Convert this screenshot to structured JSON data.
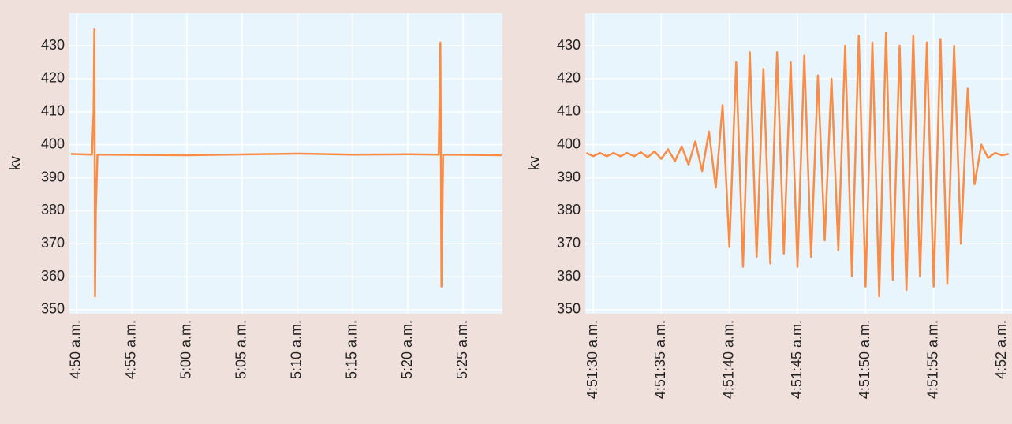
{
  "chart_data": [
    {
      "type": "line",
      "ylabel": "kv",
      "color": "#fa8c46",
      "grid": true,
      "x": [
        289.5,
        291.4,
        291.55,
        291.62,
        291.68,
        291.75,
        291.9,
        300,
        310,
        315,
        320,
        322.8,
        322.95,
        323.05,
        323.2,
        326,
        328.5
      ],
      "values": [
        397.2,
        397,
        410,
        435,
        354,
        380,
        397,
        396.8,
        397.3,
        397,
        397.1,
        397,
        431,
        357,
        397,
        396.9,
        396.8
      ],
      "xlim": [
        289.36,
        328.57
      ],
      "ylim": [
        348.8,
        439.8
      ],
      "xticks": [
        {
          "value": 290,
          "label": "4:50 a.m."
        },
        {
          "value": 295,
          "label": "4:55 a.m."
        },
        {
          "value": 300,
          "label": "5:00 a.m."
        },
        {
          "value": 305,
          "label": "5:05 a.m."
        },
        {
          "value": 310,
          "label": "5:10 a.m."
        },
        {
          "value": 315,
          "label": "5:15 a.m."
        },
        {
          "value": 320,
          "label": "5:20 a.m."
        },
        {
          "value": 325,
          "label": "5:25 a.m."
        }
      ],
      "yticks": [
        350,
        360,
        370,
        380,
        390,
        400,
        410,
        420,
        430
      ]
    },
    {
      "type": "line",
      "ylabel": "kv",
      "color": "#fa8c46",
      "grid": true,
      "x": [
        17489.5,
        17490,
        17490.5,
        17491,
        17491.5,
        17492,
        17492.5,
        17493,
        17493.5,
        17494,
        17494.5,
        17495,
        17495.5,
        17496,
        17496.5,
        17497,
        17497.5,
        17498,
        17498.5,
        17499,
        17499.5,
        17500,
        17500.5,
        17501,
        17501.5,
        17502,
        17502.5,
        17503,
        17503.5,
        17504,
        17504.5,
        17505,
        17505.5,
        17506,
        17506.5,
        17507,
        17507.5,
        17508,
        17508.5,
        17509,
        17509.5,
        17510,
        17510.5,
        17511,
        17511.5,
        17512,
        17512.5,
        17513,
        17513.5,
        17514,
        17514.5,
        17515,
        17515.5,
        17516,
        17516.5,
        17517,
        17517.5,
        17518,
        17518.5,
        17519,
        17519.5,
        17520,
        17520.5
      ],
      "values": [
        397.5,
        396.5,
        397.5,
        396.5,
        397.5,
        396.5,
        397.5,
        396.5,
        397.7,
        396.2,
        398,
        395.7,
        398.6,
        395,
        399.5,
        394,
        401,
        392,
        404,
        387,
        412,
        369,
        425,
        363,
        428,
        366,
        423,
        364,
        428,
        367,
        425,
        363,
        427,
        366,
        421,
        371,
        420,
        368,
        430,
        360,
        433,
        357,
        431,
        354,
        434,
        359,
        430,
        356,
        433,
        360,
        431,
        357,
        432,
        358,
        430,
        370,
        417,
        388,
        400,
        396,
        397.5,
        396.8,
        397.2
      ],
      "xlim": [
        17489.42,
        17520.75
      ],
      "ylim": [
        348.8,
        439.8
      ],
      "xticks": [
        {
          "value": 17490,
          "label": "4:51:30 a.m."
        },
        {
          "value": 17495,
          "label": "4:51:35 a.m."
        },
        {
          "value": 17500,
          "label": "4:51:40 a.m."
        },
        {
          "value": 17505,
          "label": "4:51:45 a.m."
        },
        {
          "value": 17510,
          "label": "4:51:50 a.m."
        },
        {
          "value": 17515,
          "label": "4:51:55 a.m."
        },
        {
          "value": 17520,
          "label": "4:52 a.m."
        }
      ],
      "yticks": [
        350,
        360,
        370,
        380,
        390,
        400,
        410,
        420,
        430
      ]
    }
  ]
}
